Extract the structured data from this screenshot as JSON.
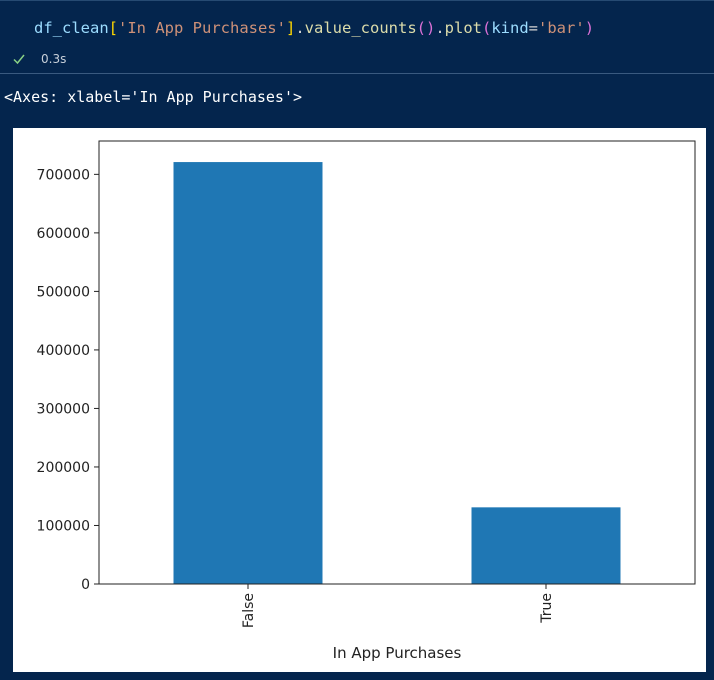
{
  "cell": {
    "code": {
      "var": "df_clean",
      "bracket_open": "[",
      "key": "'In App Purchases'",
      "bracket_close": "]",
      "dot1": ".",
      "fn1": "value_counts",
      "parens1": "()",
      "dot2": ".",
      "fn2": "plot",
      "paren_open": "(",
      "kwarg": "kind",
      "eq": "=",
      "kwval": "'bar'",
      "paren_close": ")"
    },
    "status": {
      "time": "0.3s"
    },
    "output_repr": "<Axes: xlabel='In App Purchases'>"
  },
  "colors": {
    "bar": "#1f77b4",
    "background": "#04254d",
    "success": "#89d185"
  },
  "chart_data": {
    "type": "bar",
    "categories": [
      "False",
      "True"
    ],
    "values": [
      721000,
      131000
    ],
    "xlabel": "In App Purchases",
    "ylabel": "",
    "ylim": [
      0,
      757000
    ],
    "yticks": [
      0,
      100000,
      200000,
      300000,
      400000,
      500000,
      600000,
      700000
    ],
    "ytick_labels": [
      "0",
      "100000",
      "200000",
      "300000",
      "400000",
      "500000",
      "600000",
      "700000"
    ],
    "grid": false,
    "legend": "none"
  }
}
